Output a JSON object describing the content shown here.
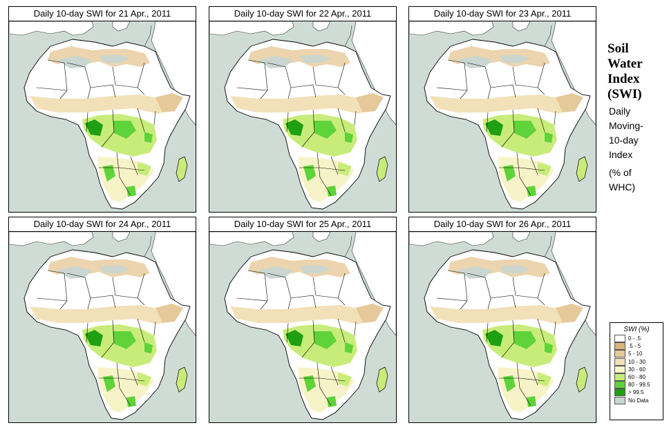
{
  "panels": [
    {
      "title": "Daily 10-day SWI for  21 Apr., 2011"
    },
    {
      "title": "Daily 10-day SWI for  22 Apr., 2011"
    },
    {
      "title": "Daily 10-day SWI for  23 Apr., 2011"
    },
    {
      "title": "Daily 10-day SWI for  24 Apr., 2011"
    },
    {
      "title": "Daily 10-day SWI for  25 Apr., 2011"
    },
    {
      "title": "Daily 10-day SWI for  26 Apr., 2011"
    }
  ],
  "side_title": {
    "line1": "Soil",
    "line2": "Water",
    "line3": "Index",
    "line4": "(SWI)"
  },
  "side_desc": {
    "line1": "Daily",
    "line2": "Moving-",
    "line3": "10-day",
    "line4": "Index"
  },
  "side_unit": {
    "line1": "(% of",
    "line2": "WHC)"
  },
  "legend": {
    "title": "SWI (%)",
    "items": [
      {
        "label": "0 - .5",
        "color": "#ffffff"
      },
      {
        "label": ".5 - 5",
        "color": "#d8b37a"
      },
      {
        "label": "5 - 10",
        "color": "#e6c99a"
      },
      {
        "label": "10 - 30",
        "color": "#f2e0b8"
      },
      {
        "label": "30 - 60",
        "color": "#f7f3c8"
      },
      {
        "label": "60 - 80",
        "color": "#c8ec7a"
      },
      {
        "label": "80 - 99.5",
        "color": "#5fd33a"
      },
      {
        "label": "> 99.5",
        "color": "#1f9f12"
      },
      {
        "label": "No Data",
        "color": "#c9d6d1"
      }
    ]
  },
  "colors": {
    "sea": "#cfdcd6",
    "border": "#000000"
  }
}
